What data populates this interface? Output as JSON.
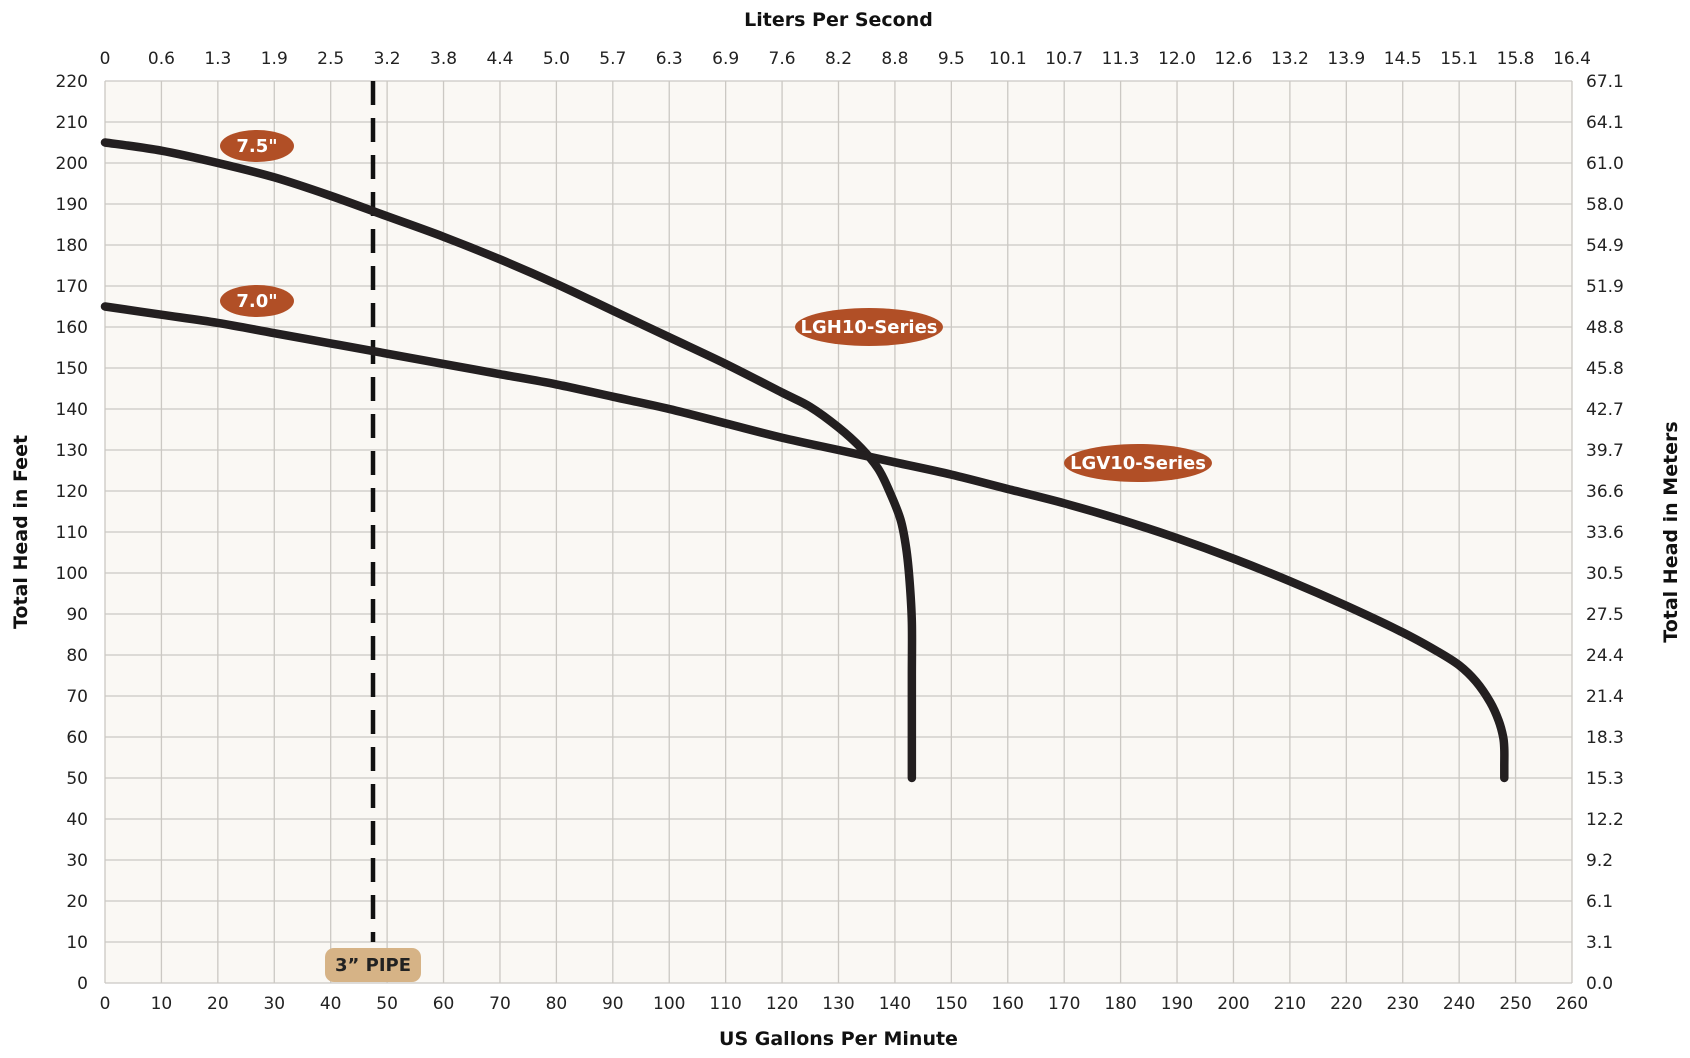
{
  "chart_data": {
    "type": "line",
    "title": "",
    "xlabel": "US Gallons Per Minute",
    "ylabel": "Total Head in Feet",
    "x2label": "Liters Per Second",
    "y2label": "Total Head in Meters",
    "xlim": [
      0,
      260
    ],
    "ylim": [
      0,
      220
    ],
    "grid": true,
    "x_ticks": [
      0,
      10,
      20,
      30,
      40,
      50,
      60,
      70,
      80,
      90,
      100,
      110,
      120,
      130,
      140,
      150,
      160,
      170,
      180,
      190,
      200,
      210,
      220,
      230,
      240,
      250,
      260
    ],
    "y_ticks": [
      0,
      10,
      20,
      30,
      40,
      50,
      60,
      70,
      80,
      90,
      100,
      110,
      120,
      130,
      140,
      150,
      160,
      170,
      180,
      190,
      200,
      210,
      220
    ],
    "x2_ticks": [
      "0",
      "0.6",
      "1.3",
      "1.9",
      "2.5",
      "3.2",
      "3.8",
      "4.4",
      "5.0",
      "5.7",
      "6.3",
      "6.9",
      "7.6",
      "8.2",
      "8.8",
      "9.5",
      "10.1",
      "10.7",
      "11.3",
      "12.0",
      "12.6",
      "13.2",
      "13.9",
      "14.5",
      "15.1",
      "15.8",
      "16.4"
    ],
    "y2_ticks": [
      "0.0",
      "3.1",
      "6.1",
      "9.2",
      "12.2",
      "15.3",
      "18.3",
      "21.4",
      "24.4",
      "27.5",
      "30.5",
      "33.6",
      "36.6",
      "39.7",
      "42.7",
      "45.8",
      "48.8",
      "51.9",
      "54.9",
      "58.0",
      "61.0",
      "64.1",
      "67.1"
    ],
    "series": [
      {
        "name": "LGH10-Series",
        "label": "7.5\"",
        "x": [
          0,
          10,
          20,
          30,
          40,
          50,
          60,
          70,
          80,
          90,
          100,
          110,
          120,
          125,
          130,
          134,
          137,
          139,
          141,
          142,
          142.6,
          143,
          143,
          143,
          143
        ],
        "y": [
          205,
          203,
          200,
          196.5,
          192,
          187,
          182,
          176.5,
          170.5,
          164,
          157.5,
          151,
          144,
          140.5,
          135.5,
          130.5,
          125.5,
          120,
          113,
          106,
          98,
          88,
          75,
          60,
          50
        ]
      },
      {
        "name": "LGV10-Series",
        "label": "7.0\"",
        "x": [
          0,
          10,
          20,
          30,
          40,
          50,
          60,
          70,
          80,
          90,
          100,
          110,
          120,
          130,
          140,
          150,
          160,
          170,
          180,
          190,
          200,
          210,
          220,
          230,
          236,
          240,
          243,
          245.5,
          247,
          247.8,
          248,
          248,
          248
        ],
        "y": [
          165,
          163,
          161,
          158.5,
          156,
          153.5,
          151,
          148.5,
          146,
          143,
          140,
          136.5,
          133,
          130,
          127,
          124,
          120.5,
          117,
          113,
          108.5,
          103.5,
          98,
          92,
          85.5,
          81,
          77.5,
          73.5,
          68.5,
          64,
          60,
          57,
          53,
          50
        ]
      }
    ],
    "reference_lines": [
      {
        "label": "3” PIPE",
        "x": 47.5,
        "y_range": [
          10,
          220
        ]
      }
    ],
    "colors": {
      "curve": "#231f20",
      "pill": "#b14f26",
      "pipe_tag": "#d6b386",
      "plot_bg": "#faf8f4",
      "grid": "#cbc8c3"
    }
  }
}
